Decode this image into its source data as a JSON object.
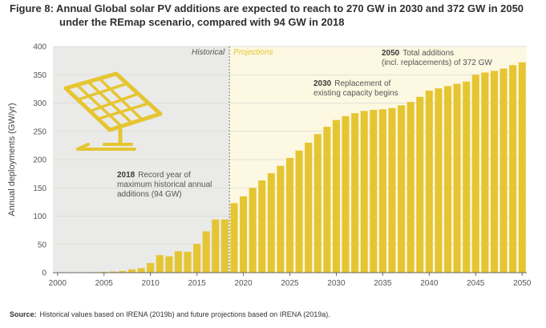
{
  "figure": {
    "title_line1": "Figure 8: Annual Global solar PV additions are expected to reach to 270 GW in 2030 and 372 GW in 2050",
    "title_line2": "under the REmap scenario, compared with 94 GW in 2018"
  },
  "source": {
    "label": "Source:",
    "text": "Historical values based on IRENA (2019b) and future projections based on IRENA (2019a)."
  },
  "colors": {
    "bar": "#e5c532",
    "historical_bg": "#eaeae8",
    "projection_bg": "#fdf8e1",
    "annotation_year": "#3a3a3a",
    "text": "#555555",
    "projections_label": "#e5c532",
    "icon": "#e5c532"
  },
  "icon": "solar-panel-icon",
  "chart_data": {
    "type": "bar",
    "ylabel": "Annual deployments (GW/yr)",
    "xlabel": "",
    "ylim": [
      0,
      400
    ],
    "yticks": [
      0,
      50,
      100,
      150,
      200,
      250,
      300,
      350,
      400
    ],
    "xticks": [
      2000,
      2005,
      2010,
      2015,
      2020,
      2025,
      2030,
      2035,
      2040,
      2045,
      2050
    ],
    "grid": true,
    "divider_labels": {
      "historical": "Historical",
      "projections": "Projections"
    },
    "x": [
      2000,
      2001,
      2002,
      2003,
      2004,
      2005,
      2006,
      2007,
      2008,
      2009,
      2010,
      2011,
      2012,
      2013,
      2014,
      2015,
      2016,
      2017,
      2018,
      2019,
      2020,
      2021,
      2022,
      2023,
      2024,
      2025,
      2026,
      2027,
      2028,
      2029,
      2030,
      2031,
      2032,
      2033,
      2034,
      2035,
      2036,
      2037,
      2038,
      2039,
      2040,
      2041,
      2042,
      2043,
      2044,
      2045,
      2046,
      2047,
      2048,
      2049,
      2050
    ],
    "values": [
      0.3,
      0.3,
      0.5,
      0.6,
      1,
      1.5,
      2,
      3,
      6,
      8,
      17,
      31,
      29,
      38,
      37,
      51,
      73,
      94,
      94,
      123,
      135,
      150,
      163,
      176,
      189,
      203,
      216,
      230,
      245,
      258,
      270,
      277,
      282,
      286,
      288,
      289,
      291,
      296,
      302,
      311,
      322,
      326,
      330,
      334,
      338,
      350,
      354,
      357,
      361,
      367,
      372
    ],
    "annotations": [
      {
        "year": "2018",
        "text": "Record year of",
        "lines": [
          "maximum historical annual",
          "additions (94 GW)"
        ]
      },
      {
        "year": "2030",
        "text": "Replacement of",
        "lines": [
          "existing capacity begins"
        ]
      },
      {
        "year": "2050",
        "text": "Total additions",
        "lines": [
          "(incl. replacements) of 372 GW"
        ]
      }
    ]
  }
}
